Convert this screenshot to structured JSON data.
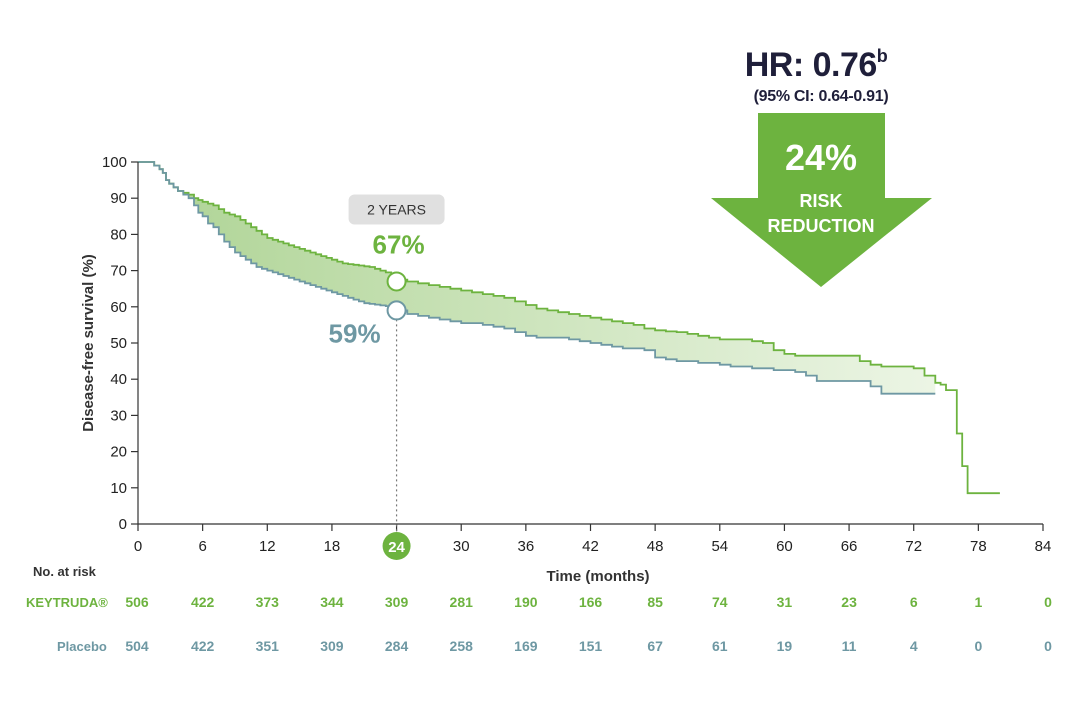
{
  "chart_data": {
    "type": "line",
    "xlabel": "Time (months)",
    "ylabel": "Disease-free survival (%)",
    "xlim": [
      0,
      84
    ],
    "ylim": [
      0,
      100
    ],
    "x_ticks": [
      0,
      6,
      12,
      18,
      24,
      30,
      36,
      42,
      48,
      54,
      60,
      66,
      72,
      78,
      84
    ],
    "y_ticks": [
      0,
      10,
      20,
      30,
      40,
      50,
      60,
      70,
      80,
      90,
      100
    ],
    "highlight_tick": 24,
    "colors": {
      "keytruda": "#6db33f",
      "placebo": "#6e98a3",
      "fill": "#a9d18e",
      "highlight": "#6db33f"
    },
    "series": [
      {
        "name": "KEYTRUDA®",
        "x": [
          0,
          1,
          1.5,
          2,
          2.3,
          2.6,
          2.9,
          3.3,
          3.7,
          4.2,
          4.7,
          5.2,
          5.6,
          6.0,
          6.5,
          7.0,
          7.5,
          8.0,
          8.5,
          9.0,
          9.5,
          10.0,
          10.5,
          11.0,
          11.5,
          12.0,
          12.5,
          13.0,
          13.5,
          14.0,
          14.5,
          15.0,
          15.5,
          16.0,
          16.5,
          17.0,
          17.5,
          18.0,
          18.5,
          19.0,
          19.5,
          20.0,
          20.5,
          21.0,
          21.5,
          22.0,
          22.5,
          23.0,
          23.5,
          24.0,
          25,
          26,
          27,
          28,
          29,
          30,
          31,
          32,
          33,
          34,
          35,
          36,
          37,
          38,
          39,
          40,
          41,
          42,
          43,
          44,
          45,
          46,
          47,
          48,
          49,
          50,
          51,
          52,
          53,
          54,
          55,
          56,
          57,
          58,
          59,
          60,
          61,
          62,
          63,
          64,
          65,
          66,
          67,
          68,
          69,
          70,
          71,
          72,
          73,
          74,
          74.5,
          75,
          76,
          76.5,
          77,
          78,
          79,
          80
        ],
        "y": [
          100,
          100,
          99,
          98,
          97,
          95,
          94,
          93,
          92,
          91.5,
          91,
          90,
          89.5,
          89,
          88.5,
          88,
          87,
          86,
          85.5,
          85,
          84,
          83,
          82,
          81,
          80,
          79,
          78.5,
          78,
          77.5,
          77,
          76.5,
          76,
          75.5,
          75,
          74.5,
          74,
          73.5,
          73,
          72.5,
          72,
          71.8,
          71.6,
          71.4,
          71.2,
          71,
          70.5,
          70,
          69.5,
          68.5,
          67.5,
          67,
          66.5,
          66,
          65.5,
          65,
          64.5,
          64,
          63.5,
          63,
          62.5,
          61.5,
          60.5,
          59.5,
          59,
          58.5,
          58,
          57.5,
          57,
          56.5,
          56,
          55.5,
          55,
          54,
          53.5,
          53.2,
          53,
          52.5,
          52,
          51.5,
          51,
          51,
          51,
          50.5,
          50,
          48,
          47,
          46.5,
          46.5,
          46.5,
          46.5,
          46.5,
          46.5,
          45,
          44,
          43.5,
          43.5,
          43.5,
          43,
          41,
          39,
          38.5,
          37,
          25,
          16,
          8.5,
          8.5,
          8.5,
          8.5
        ]
      },
      {
        "name": "Placebo",
        "x": [
          0,
          1,
          1.5,
          2,
          2.3,
          2.6,
          2.9,
          3.3,
          3.7,
          4.2,
          4.7,
          5.2,
          5.6,
          6.0,
          6.5,
          7.0,
          7.5,
          8.0,
          8.5,
          9.0,
          9.5,
          10.0,
          10.5,
          11.0,
          11.5,
          12.0,
          12.5,
          13.0,
          13.5,
          14.0,
          14.5,
          15.0,
          15.5,
          16.0,
          16.5,
          17.0,
          17.5,
          18.0,
          18.5,
          19.0,
          19.5,
          20.0,
          20.5,
          21.0,
          21.5,
          22.0,
          22.5,
          23.0,
          23.5,
          24.0,
          25,
          26,
          27,
          28,
          29,
          30,
          31,
          32,
          33,
          34,
          35,
          36,
          37,
          38,
          39,
          40,
          41,
          42,
          43,
          44,
          45,
          46,
          47,
          48,
          49,
          50,
          51,
          52,
          53,
          54,
          55,
          56,
          57,
          58,
          59,
          60,
          61,
          62,
          63,
          64,
          65,
          66,
          67,
          68,
          69,
          70,
          71,
          72,
          73,
          74
        ],
        "y": [
          100,
          100,
          99,
          98,
          97,
          95,
          94,
          93,
          92,
          91,
          90,
          88,
          86,
          85,
          83,
          82,
          80,
          78,
          76.5,
          75,
          74,
          73,
          72,
          71,
          70.5,
          70,
          69.5,
          69,
          68.5,
          68,
          67.5,
          67,
          66.5,
          66,
          65.5,
          65,
          64.5,
          64,
          63.5,
          63,
          62.5,
          62,
          61.5,
          61,
          60.8,
          60.6,
          60.4,
          60.2,
          60,
          59,
          58,
          57.5,
          57,
          56.5,
          56,
          55.5,
          55.5,
          55,
          54.5,
          54,
          53,
          52,
          51.5,
          51.5,
          51.5,
          51,
          50.5,
          50,
          49.5,
          49,
          48.5,
          48.5,
          48,
          46,
          45.5,
          45,
          45,
          44.5,
          44.5,
          44,
          43.5,
          43.5,
          43,
          43,
          42.5,
          42.5,
          42,
          41,
          39.5,
          39.5,
          39.5,
          39.5,
          39.5,
          38,
          36,
          36,
          36,
          36,
          36,
          36
        ]
      }
    ],
    "landmark": {
      "tag": "2 YEARS",
      "x": 24,
      "keytruda_value": 67,
      "placebo_value": 59,
      "keytruda_label": "67%",
      "placebo_label": "59%"
    },
    "hazard_ratio": {
      "hr_text": "HR: 0.76",
      "hr_superscript": "b",
      "ci_text": "(95% CI: 0.64-0.91)",
      "reduction_value": "24%",
      "reduction_line1": "RISK",
      "reduction_line2": "REDUCTION"
    },
    "risk_table": {
      "heading": "No. at risk",
      "rows": [
        {
          "name": "KEYTRUDA®",
          "values": [
            "506",
            "422",
            "373",
            "344",
            "309",
            "281",
            "190",
            "166",
            "85",
            "74",
            "31",
            "23",
            "6",
            "1",
            "0"
          ]
        },
        {
          "name": "Placebo",
          "values": [
            "504",
            "422",
            "351",
            "309",
            "284",
            "258",
            "169",
            "151",
            "67",
            "61",
            "19",
            "11",
            "4",
            "0",
            "0"
          ]
        }
      ]
    }
  }
}
